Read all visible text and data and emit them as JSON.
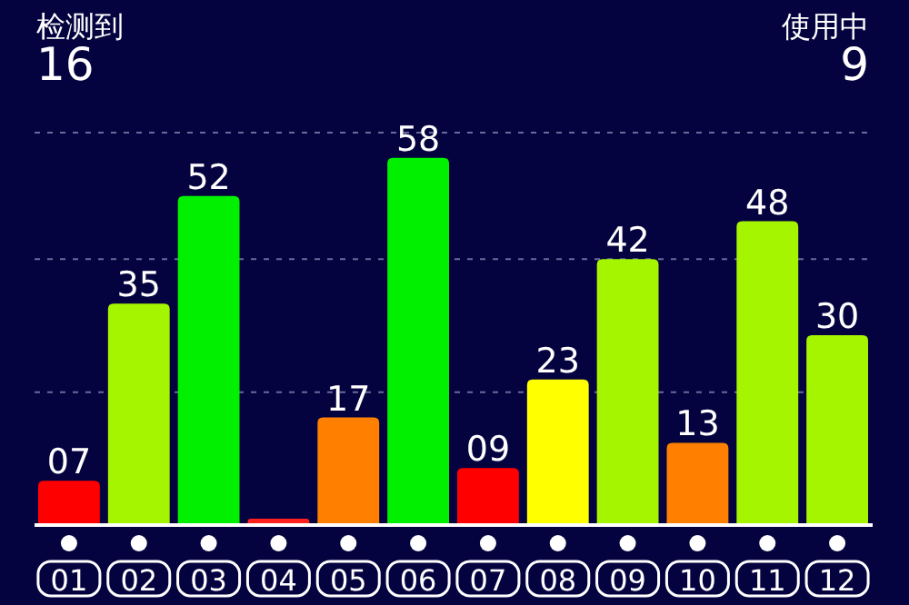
{
  "chart_data": {
    "type": "bar",
    "categories": [
      "01",
      "02",
      "03",
      "04",
      "05",
      "06",
      "07",
      "08",
      "09",
      "10",
      "11",
      "12"
    ],
    "values": [
      7,
      35,
      52,
      1,
      17,
      58,
      9,
      23,
      42,
      13,
      48,
      30
    ],
    "value_labels": [
      "07",
      "35",
      "52",
      null,
      "17",
      "58",
      "09",
      "23",
      "42",
      "13",
      "48",
      "30"
    ],
    "colors": [
      "#ff0000",
      "#a6f500",
      "#00f000",
      "#ff2020",
      "#ff8000",
      "#00f000",
      "#ff0000",
      "#ffff00",
      "#a6f500",
      "#ff8000",
      "#a6f500",
      "#a6f500"
    ],
    "ylim": [
      0,
      62
    ],
    "tick_labels": "x",
    "ref_lines": [
      {
        "axis": "y",
        "value": 21,
        "line_style": "dashed",
        "color": "#6a6a9a"
      },
      {
        "axis": "y",
        "value": 42,
        "line_style": "dashed",
        "color": "#6a6a9a"
      },
      {
        "axis": "y",
        "value": 62,
        "line_style": "dashed",
        "color": "#6a6a9a"
      }
    ],
    "annotations": [
      "检测到",
      "16",
      "使用中",
      "9"
    ]
  }
}
